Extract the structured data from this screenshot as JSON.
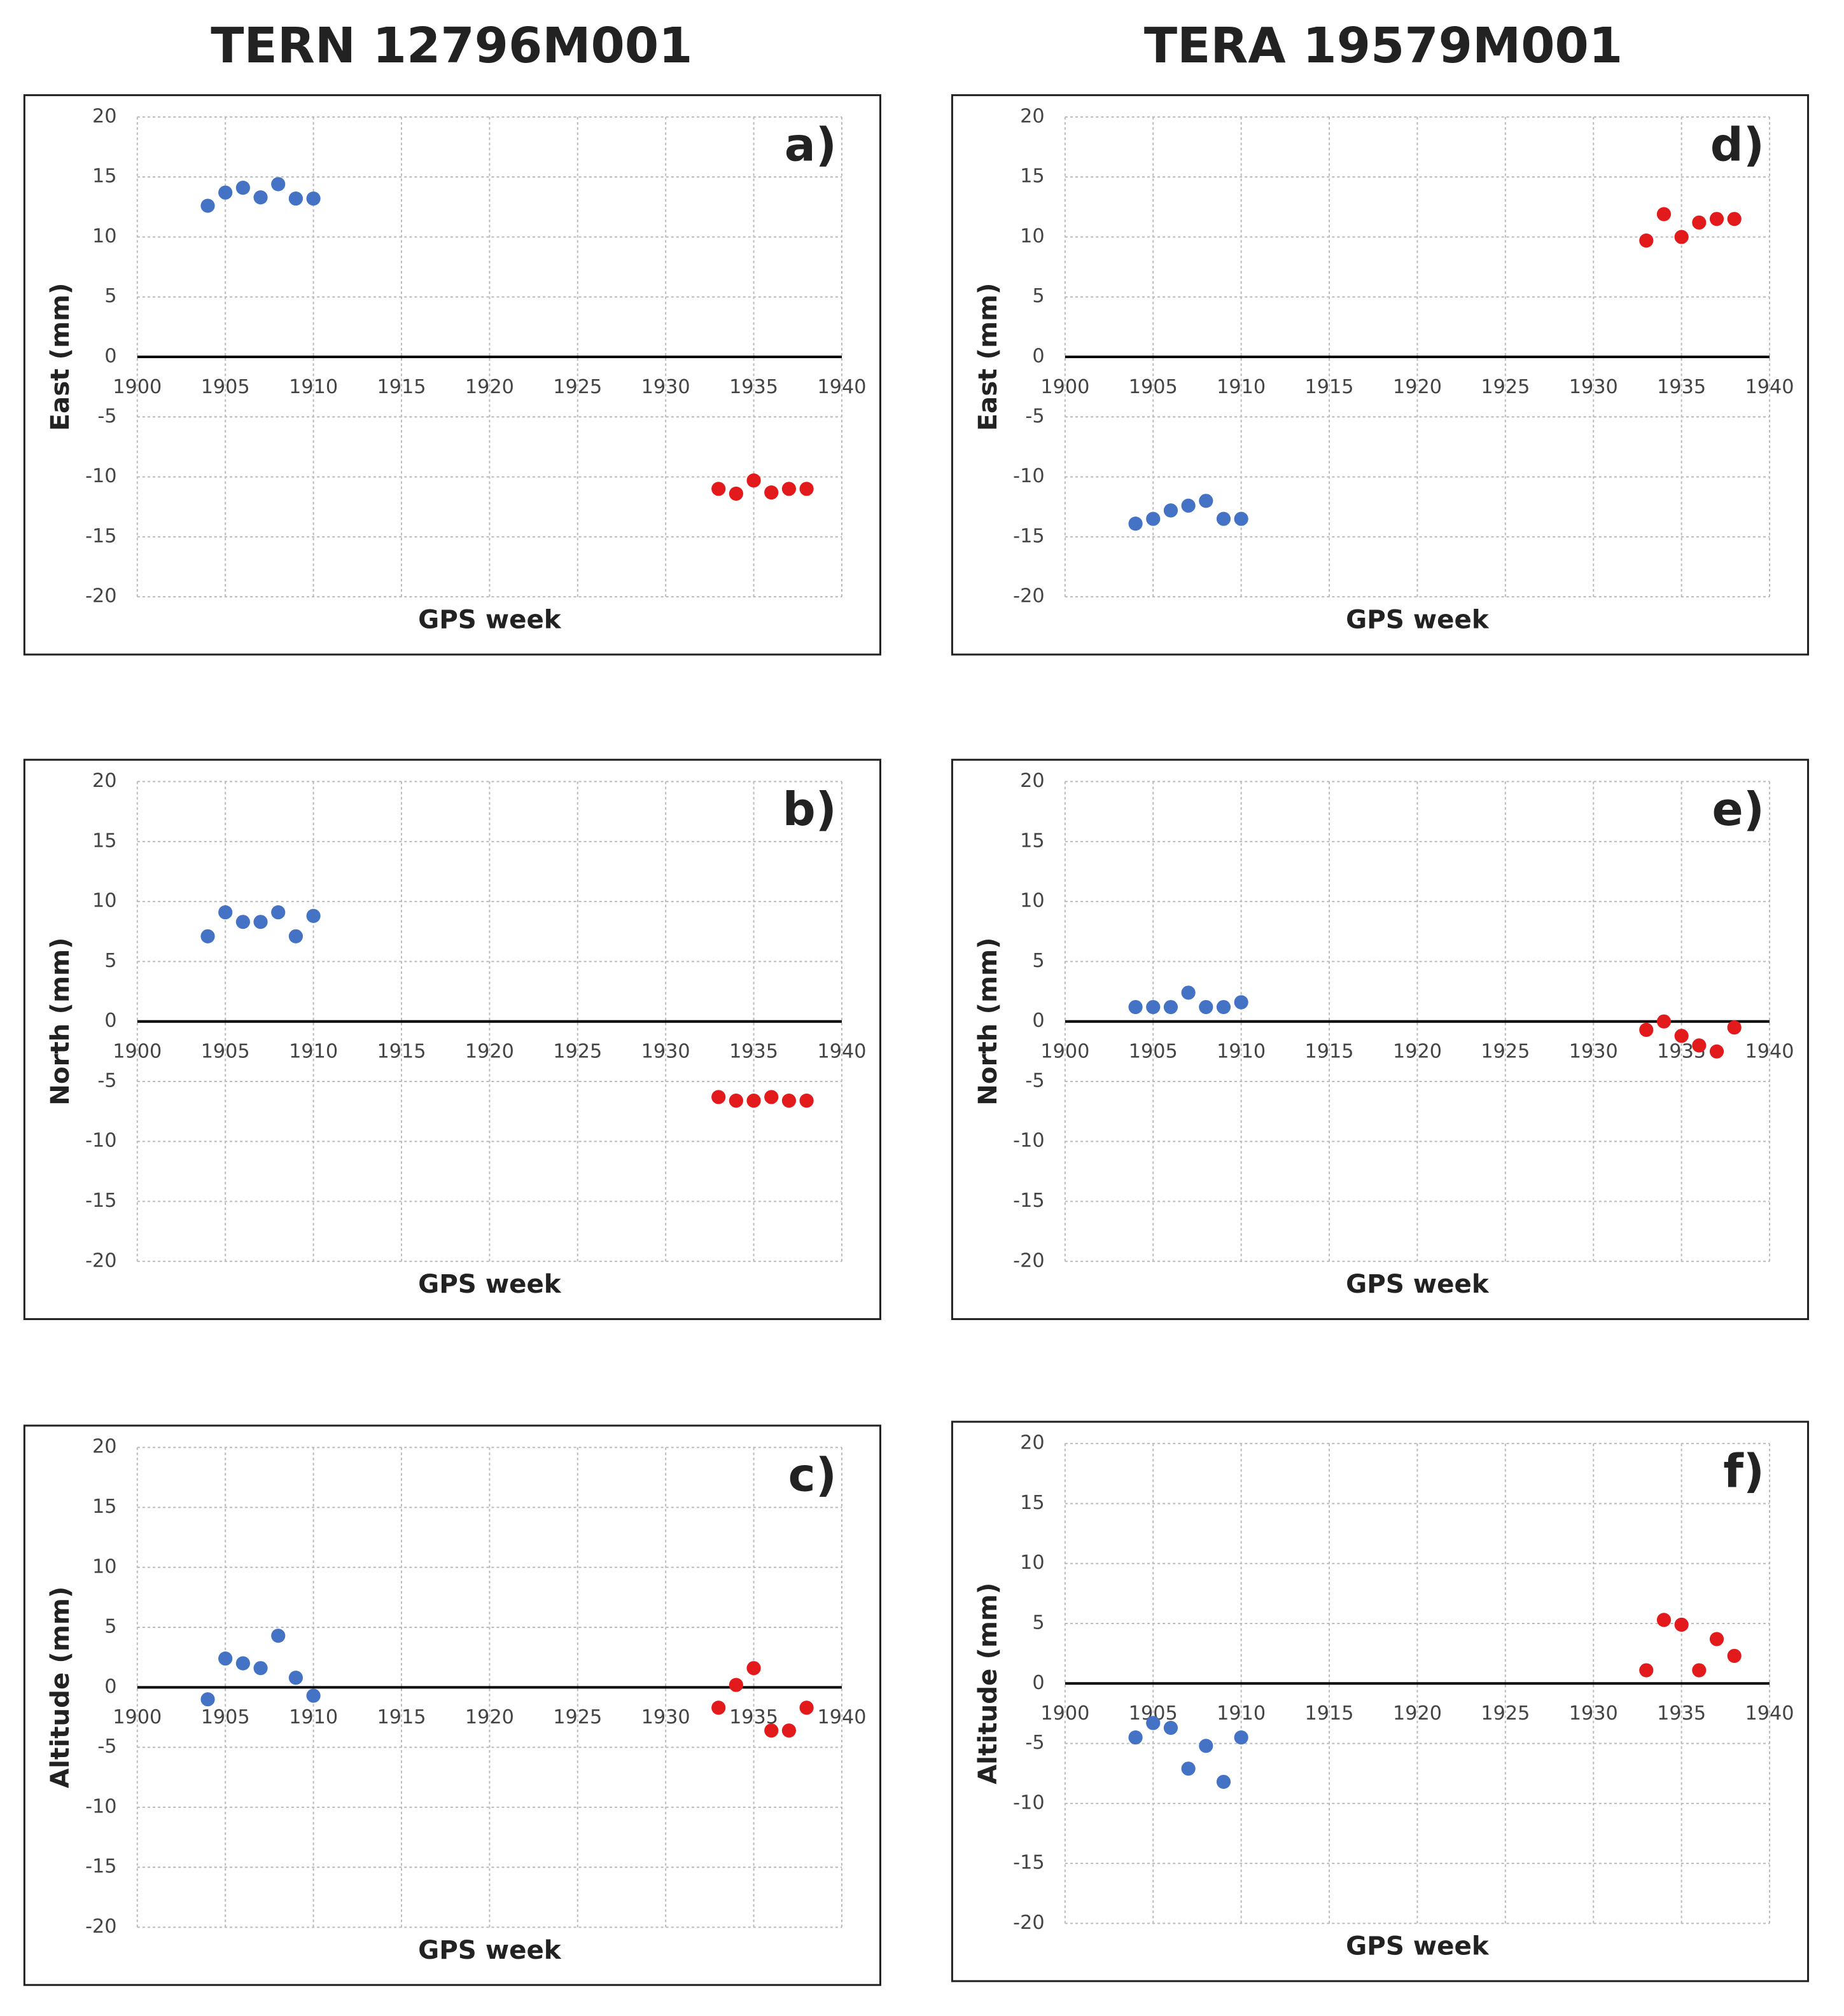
{
  "column_titles": [
    "TERN 12796M001",
    "TERA 19579M001"
  ],
  "chart_data": [
    {
      "type": "scatter",
      "panel_label": "a)",
      "ylabel": "East (mm)",
      "xlabel": "GPS week",
      "xlim": [
        1900,
        1940
      ],
      "xticks": [
        1900,
        1905,
        1910,
        1915,
        1920,
        1925,
        1930,
        1935,
        1940
      ],
      "ylim": [
        -20,
        20
      ],
      "yticks": [
        -20,
        -15,
        -10,
        -5,
        0,
        5,
        10,
        15,
        20
      ],
      "grid": true,
      "series": [
        {
          "color": "#4472c4",
          "x": [
            1904,
            1905,
            1906,
            1907,
            1908,
            1909,
            1910
          ],
          "values": [
            12.6,
            13.7,
            14.1,
            13.3,
            14.4,
            13.2,
            13.2
          ]
        },
        {
          "color": "#e31a1c",
          "x": [
            1933,
            1934,
            1935,
            1936,
            1937,
            1938
          ],
          "values": [
            -11,
            -11.4,
            -10.3,
            -11.3,
            -11,
            -11
          ]
        }
      ]
    },
    {
      "type": "scatter",
      "panel_label": "b)",
      "ylabel": "North (mm)",
      "xlabel": "GPS week",
      "xlim": [
        1900,
        1940
      ],
      "xticks": [
        1900,
        1905,
        1910,
        1915,
        1920,
        1925,
        1930,
        1935,
        1940
      ],
      "ylim": [
        -20,
        20
      ],
      "yticks": [
        -20,
        -15,
        -10,
        -5,
        0,
        5,
        10,
        15,
        20
      ],
      "grid": true,
      "series": [
        {
          "color": "#4472c4",
          "x": [
            1904,
            1905,
            1906,
            1907,
            1908,
            1909,
            1910
          ],
          "values": [
            7.1,
            9.1,
            8.3,
            8.3,
            9.1,
            7.1,
            8.8
          ]
        },
        {
          "color": "#e31a1c",
          "x": [
            1933,
            1934,
            1935,
            1936,
            1937,
            1938
          ],
          "values": [
            -6.3,
            -6.6,
            -6.6,
            -6.3,
            -6.6,
            -6.6
          ]
        }
      ]
    },
    {
      "type": "scatter",
      "panel_label": "c)",
      "ylabel": "Altitude (mm)",
      "xlabel": "GPS week",
      "xlim": [
        1900,
        1940
      ],
      "xticks": [
        1900,
        1905,
        1910,
        1915,
        1920,
        1925,
        1930,
        1935,
        1940
      ],
      "ylim": [
        -20,
        20
      ],
      "yticks": [
        -20,
        -15,
        -10,
        -5,
        0,
        5,
        10,
        15,
        20
      ],
      "grid": true,
      "series": [
        {
          "color": "#4472c4",
          "x": [
            1904,
            1905,
            1906,
            1907,
            1908,
            1909,
            1910
          ],
          "values": [
            -1,
            2.4,
            2,
            1.6,
            4.3,
            0.8,
            -0.7
          ]
        },
        {
          "color": "#e31a1c",
          "x": [
            1933,
            1934,
            1935,
            1936,
            1937,
            1938
          ],
          "values": [
            -1.7,
            0.2,
            1.6,
            -3.6,
            -3.6,
            -1.7
          ]
        }
      ]
    },
    {
      "type": "scatter",
      "panel_label": "d)",
      "ylabel": "East (mm)",
      "xlabel": "GPS week",
      "xlim": [
        1900,
        1940
      ],
      "xticks": [
        1900,
        1905,
        1910,
        1915,
        1920,
        1925,
        1930,
        1935,
        1940
      ],
      "ylim": [
        -20,
        20
      ],
      "yticks": [
        -20,
        -15,
        -10,
        -5,
        0,
        5,
        10,
        15,
        20
      ],
      "grid": true,
      "series": [
        {
          "color": "#4472c4",
          "x": [
            1904,
            1905,
            1906,
            1907,
            1908,
            1909,
            1910
          ],
          "values": [
            -13.9,
            -13.5,
            -12.8,
            -12.4,
            -12,
            -13.5,
            -13.5
          ]
        },
        {
          "color": "#e31a1c",
          "x": [
            1933,
            1934,
            1935,
            1936,
            1937,
            1938
          ],
          "values": [
            9.7,
            11.9,
            10,
            11.2,
            11.5,
            11.5
          ]
        }
      ]
    },
    {
      "type": "scatter",
      "panel_label": "e)",
      "ylabel": "North (mm)",
      "xlabel": "GPS week",
      "xlim": [
        1900,
        1940
      ],
      "xticks": [
        1900,
        1905,
        1910,
        1915,
        1920,
        1925,
        1930,
        1935,
        1940
      ],
      "ylim": [
        -20,
        20
      ],
      "yticks": [
        -20,
        -15,
        -10,
        -5,
        0,
        5,
        10,
        15,
        20
      ],
      "grid": true,
      "series": [
        {
          "color": "#4472c4",
          "x": [
            1904,
            1905,
            1906,
            1907,
            1908,
            1909,
            1910
          ],
          "values": [
            1.2,
            1.2,
            1.2,
            2.4,
            1.2,
            1.2,
            1.6
          ]
        },
        {
          "color": "#e31a1c",
          "x": [
            1933,
            1934,
            1935,
            1936,
            1937,
            1938
          ],
          "values": [
            -0.7,
            0,
            -1.2,
            -2,
            -2.5,
            -0.5
          ]
        }
      ]
    },
    {
      "type": "scatter",
      "panel_label": "f)",
      "ylabel": "Altitude (mm)",
      "xlabel": "GPS week",
      "xlim": [
        1900,
        1940
      ],
      "xticks": [
        1900,
        1905,
        1910,
        1915,
        1920,
        1925,
        1930,
        1935,
        1940
      ],
      "ylim": [
        -20,
        20
      ],
      "yticks": [
        -20,
        -15,
        -10,
        -5,
        0,
        5,
        10,
        15,
        20
      ],
      "grid": true,
      "series": [
        {
          "color": "#4472c4",
          "x": [
            1904,
            1905,
            1906,
            1907,
            1908,
            1909,
            1910
          ],
          "values": [
            -4.5,
            -3.3,
            -3.7,
            -7.1,
            -5.2,
            -8.2,
            -4.5
          ]
        },
        {
          "color": "#e31a1c",
          "x": [
            1933,
            1934,
            1935,
            1936,
            1937,
            1938
          ],
          "values": [
            1.1,
            5.3,
            4.9,
            1.1,
            3.7,
            2.3
          ]
        }
      ]
    }
  ]
}
